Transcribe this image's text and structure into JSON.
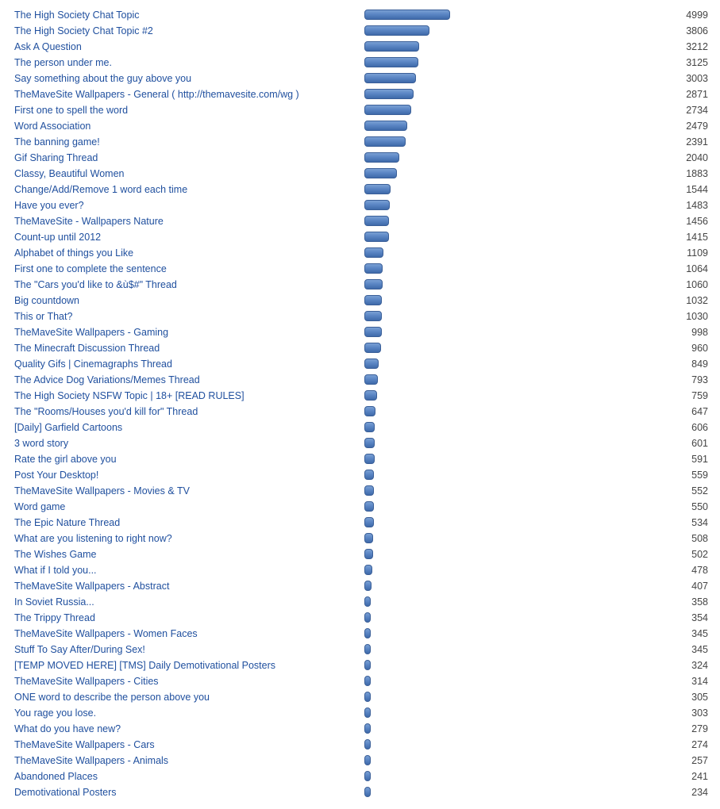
{
  "chart_data": {
    "type": "bar",
    "orientation": "horizontal",
    "categories": [
      "The High Society Chat Topic",
      "The High Society Chat Topic #2",
      "Ask A Question",
      "The person under me.",
      "Say something about the guy above you",
      "TheMaveSite Wallpapers - General ( http://themavesite.com/wg )",
      "First one to spell the word",
      "Word Association",
      "The banning game!",
      "Gif Sharing Thread",
      "Classy, Beautiful Women",
      "Change/Add/Remove 1 word each time",
      "Have you ever?",
      "TheMaveSite - Wallpapers Nature",
      "Count-up until 2012",
      "Alphabet of things you Like",
      "First one to complete the sentence",
      "The \"Cars you'd like to &ù$#\" Thread",
      "Big countdown",
      "This or That?",
      "TheMaveSite Wallpapers - Gaming",
      "The Minecraft Discussion Thread",
      "Quality Gifs | Cinemagraphs Thread",
      "The Advice Dog Variations/Memes Thread",
      "The High Society NSFW Topic | 18+ [READ RULES]",
      "The \"Rooms/Houses you'd kill for\" Thread",
      "[Daily] Garfield Cartoons",
      "3 word story",
      "Rate the girl above you",
      "Post Your Desktop!",
      "TheMaveSite Wallpapers - Movies & TV",
      "Word game",
      "The Epic Nature Thread",
      "What are you listening to right now?",
      "The Wishes Game",
      "What if I told you...",
      "TheMaveSite Wallpapers - Abstract",
      "In Soviet Russia...",
      "The Trippy Thread",
      "TheMaveSite Wallpapers - Women Faces",
      "Stuff To Say After/During Sex!",
      "[TEMP MOVED HERE] [TMS] Daily Demotivational Posters",
      "TheMaveSite Wallpapers - Cities",
      "ONE word to describe the person above you",
      "You rage you lose.",
      "What do you have new?",
      "TheMaveSite Wallpapers - Cars",
      "TheMaveSite Wallpapers - Animals",
      "Abandoned Places",
      "Demotivational Posters"
    ],
    "values": [
      4999,
      3806,
      3212,
      3125,
      3003,
      2871,
      2734,
      2479,
      2391,
      2040,
      1883,
      1544,
      1483,
      1456,
      1415,
      1109,
      1064,
      1060,
      1032,
      1030,
      998,
      960,
      849,
      793,
      759,
      647,
      606,
      601,
      591,
      559,
      552,
      550,
      534,
      508,
      502,
      478,
      407,
      358,
      354,
      345,
      345,
      324,
      314,
      305,
      303,
      279,
      274,
      257,
      241,
      234
    ],
    "title": "",
    "xlabel": "",
    "ylabel": "",
    "xlim": [
      0,
      4999
    ],
    "grid": false,
    "legend": "none",
    "bar_color": "#5b86c4",
    "link_color": "#1f4f9e",
    "count_color": "#444444"
  }
}
